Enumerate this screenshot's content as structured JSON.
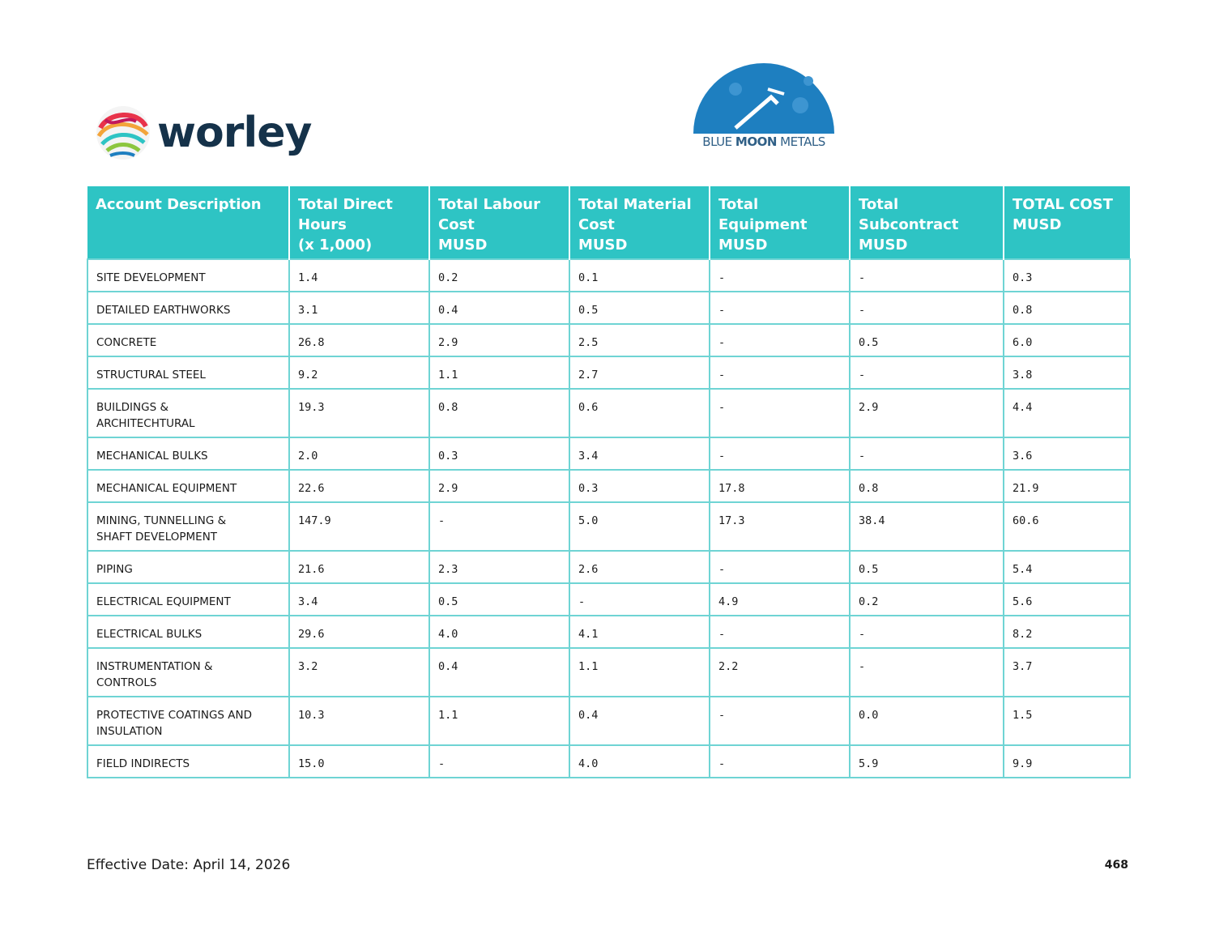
{
  "logos": {
    "worley_text": "worley",
    "bluemoon_text_light": "BLUE ",
    "bluemoon_text_bold": "MOON",
    "bluemoon_text_rest": " METALS"
  },
  "table": {
    "headers": [
      [
        "Account Description"
      ],
      [
        "Total Direct",
        "Hours",
        "(x 1,000)"
      ],
      [
        "Total Labour",
        "Cost",
        "MUSD"
      ],
      [
        "Total Material",
        "Cost",
        "MUSD"
      ],
      [
        "Total",
        "Equipment",
        "MUSD"
      ],
      [
        "Total",
        "Subcontract",
        "MUSD"
      ],
      [
        "TOTAL COST",
        "MUSD"
      ]
    ],
    "rows": [
      {
        "desc": [
          "SITE DEVELOPMENT"
        ],
        "hours": "1.4",
        "labour": "0.2",
        "material": "0.1",
        "equipment": "-",
        "subcontract": "-",
        "total": "0.3"
      },
      {
        "desc": [
          "DETAILED EARTHWORKS"
        ],
        "hours": "3.1",
        "labour": "0.4",
        "material": "0.5",
        "equipment": "-",
        "subcontract": "-",
        "total": "0.8"
      },
      {
        "desc": [
          "CONCRETE"
        ],
        "hours": "26.8",
        "labour": "2.9",
        "material": "2.5",
        "equipment": "-",
        "subcontract": "0.5",
        "total": "6.0"
      },
      {
        "desc": [
          "STRUCTURAL STEEL"
        ],
        "hours": "9.2",
        "labour": "1.1",
        "material": "2.7",
        "equipment": "-",
        "subcontract": "-",
        "total": "3.8"
      },
      {
        "desc": [
          "BUILDINGS &",
          "ARCHITECHTURAL"
        ],
        "hours": "19.3",
        "labour": "0.8",
        "material": "0.6",
        "equipment": "-",
        "subcontract": "2.9",
        "total": "4.4"
      },
      {
        "desc": [
          "MECHANICAL BULKS"
        ],
        "hours": "2.0",
        "labour": "0.3",
        "material": "3.4",
        "equipment": "-",
        "subcontract": "-",
        "total": "3.6"
      },
      {
        "desc": [
          "MECHANICAL EQUIPMENT"
        ],
        "hours": "22.6",
        "labour": "2.9",
        "material": "0.3",
        "equipment": "17.8",
        "subcontract": "0.8",
        "total": "21.9"
      },
      {
        "desc": [
          "MINING, TUNNELLING &",
          "SHAFT DEVELOPMENT"
        ],
        "hours": "147.9",
        "labour": "-",
        "material": "5.0",
        "equipment": "17.3",
        "subcontract": "38.4",
        "total": "60.6"
      },
      {
        "desc": [
          "PIPING"
        ],
        "hours": "21.6",
        "labour": "2.3",
        "material": "2.6",
        "equipment": "-",
        "subcontract": "0.5",
        "total": "5.4"
      },
      {
        "desc": [
          "ELECTRICAL EQUIPMENT"
        ],
        "hours": "3.4",
        "labour": "0.5",
        "material": "-",
        "equipment": "4.9",
        "subcontract": "0.2",
        "total": "5.6"
      },
      {
        "desc": [
          "ELECTRICAL BULKS"
        ],
        "hours": "29.6",
        "labour": "4.0",
        "material": "4.1",
        "equipment": "-",
        "subcontract": "-",
        "total": "8.2"
      },
      {
        "desc": [
          "INSTRUMENTATION &",
          "CONTROLS"
        ],
        "hours": "3.2",
        "labour": "0.4",
        "material": "1.1",
        "equipment": "2.2",
        "subcontract": "-",
        "total": "3.7"
      },
      {
        "desc": [
          "PROTECTIVE COATINGS AND",
          "INSULATION"
        ],
        "hours": "10.3",
        "labour": "1.1",
        "material": "0.4",
        "equipment": "-",
        "subcontract": "0.0",
        "total": "1.5"
      },
      {
        "desc": [
          "FIELD INDIRECTS"
        ],
        "hours": "15.0",
        "labour": "-",
        "material": "4.0",
        "equipment": "-",
        "subcontract": "5.9",
        "total": "9.9"
      }
    ]
  },
  "footer": {
    "effective_date": "Effective Date: April 14, 2026",
    "page_number": "468"
  },
  "colors": {
    "header_bg": "#2ec4c4",
    "grid_line": "#6fd4d4",
    "worley_text": "#15324a",
    "bluemoon_blue": "#1e7fc0"
  },
  "icons": [
    "worley-swirl-logo",
    "blue-moon-metals-logo"
  ]
}
